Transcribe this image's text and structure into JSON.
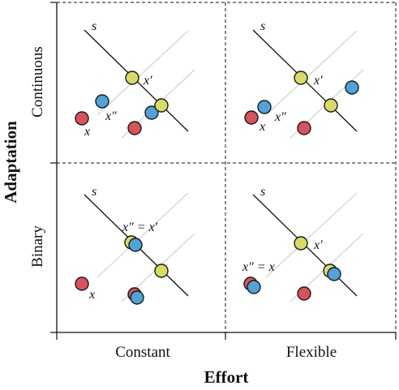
{
  "axes": {
    "x_title": "Effort",
    "y_title": "Adaptation",
    "x_categories": [
      "Constant",
      "Flexible"
    ],
    "y_categories": [
      "Continuous",
      "Binary"
    ]
  },
  "colors": {
    "red": "#d9525a",
    "yellow": "#d9db63",
    "blue": "#4fa3d8",
    "stroke": "#1a1a1a",
    "guide": "#c8c8c8"
  },
  "panels": [
    {
      "id": "continuous-constant",
      "labels": {
        "s": "s",
        "x": "x",
        "xp": "x′",
        "xpp": "x″"
      }
    },
    {
      "id": "continuous-flexible",
      "labels": {
        "s": "s",
        "x": "x",
        "xp": "x′",
        "xpp": "x″"
      }
    },
    {
      "id": "binary-constant",
      "labels": {
        "s": "s",
        "x": "x",
        "xpp_eq_xp": "x″ = x′"
      }
    },
    {
      "id": "binary-flexible",
      "labels": {
        "s": "s",
        "xp": "x′",
        "xpp_eq_x": "x″ = x"
      }
    }
  ]
}
